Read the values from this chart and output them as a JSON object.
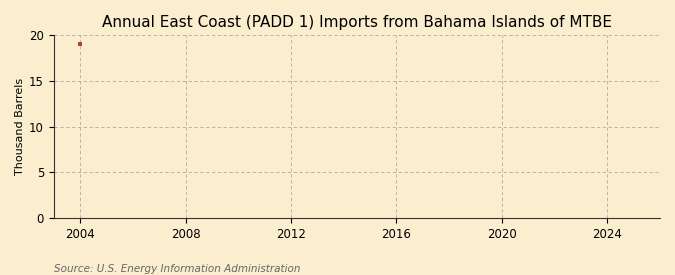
{
  "title": "Annual East Coast (PADD 1) Imports from Bahama Islands of MTBE",
  "ylabel": "Thousand Barrels",
  "source": "Source: U.S. Energy Information Administration",
  "data_x": [
    2004
  ],
  "data_y": [
    19
  ],
  "marker_color": "#c0392b",
  "marker_style": "s",
  "marker_size": 3,
  "xlim": [
    2003,
    2026
  ],
  "ylim": [
    0,
    20
  ],
  "xticks": [
    2004,
    2008,
    2012,
    2016,
    2020,
    2024
  ],
  "yticks": [
    0,
    5,
    10,
    15,
    20
  ],
  "background_color": "#faeecf",
  "plot_bg_color": "#faeecf",
  "grid_color": "#aaaaaa",
  "title_fontsize": 11,
  "label_fontsize": 8,
  "tick_fontsize": 8.5,
  "source_fontsize": 7.5
}
